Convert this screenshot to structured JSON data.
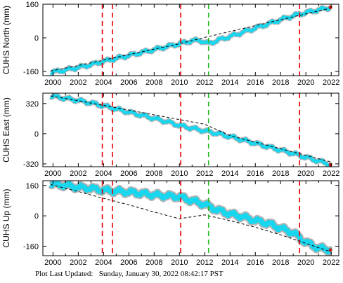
{
  "footer": {
    "label": "Plot Last Updated:",
    "value": "Sunday, January 30, 2022 08:42:17 PST"
  },
  "colors": {
    "data": "#19d6ef",
    "error": "#b4b4b4",
    "model": "#000000",
    "event_red": "#e00000",
    "event_green": "#22bb22",
    "recent": "#d01010"
  },
  "chart_data": [
    {
      "type": "line",
      "ylabel": "CUHS North (mm)",
      "x_ticks": [
        2000,
        2002,
        2004,
        2006,
        2008,
        2010,
        2012,
        2014,
        2016,
        2018,
        2020,
        2022
      ],
      "y_ticks": [
        -160,
        0,
        160
      ],
      "xlim": [
        1999.2,
        2022.6
      ],
      "ylim": [
        -180,
        160
      ],
      "grid": false,
      "events": [
        {
          "year": 2003.9,
          "color": "red"
        },
        {
          "year": 2004.7,
          "color": "red"
        },
        {
          "year": 2010.1,
          "color": "red"
        },
        {
          "year": 2012.3,
          "color": "green"
        },
        {
          "year": 2019.5,
          "color": "red"
        }
      ],
      "series": [
        {
          "x": [
            1999.8,
            2001,
            2002,
            2003,
            2004,
            2005,
            2006,
            2007,
            2008,
            2009,
            2010,
            2011,
            2011.6,
            2012.3,
            2013,
            2014,
            2015,
            2016,
            2017,
            2018,
            2019,
            2020,
            2021,
            2022
          ],
          "y": [
            -165,
            -153,
            -141,
            -128,
            -112,
            -98,
            -84,
            -70,
            -56,
            -42,
            -28,
            -14,
            -12,
            -28,
            -12,
            6,
            26,
            46,
            66,
            86,
            105,
            120,
            133,
            145
          ]
        },
        {
          "x": [
            1999.8,
            2002,
            2004,
            2006,
            2008,
            2010,
            2012,
            2014,
            2016,
            2018,
            2020,
            2022
          ],
          "y": [
            -158,
            -132,
            -106,
            -80,
            -54,
            -28,
            2,
            30,
            58,
            86,
            114,
            142
          ]
        }
      ]
    },
    {
      "type": "line",
      "ylabel": "CUHS East (mm)",
      "x_ticks": [
        2000,
        2002,
        2004,
        2006,
        2008,
        2010,
        2012,
        2014,
        2016,
        2018,
        2020,
        2022
      ],
      "y_ticks": [
        -320,
        0,
        320
      ],
      "xlim": [
        1999.2,
        2022.6
      ],
      "ylim": [
        -350,
        430
      ],
      "grid": false,
      "events": [
        {
          "year": 2003.9,
          "color": "red"
        },
        {
          "year": 2004.7,
          "color": "red"
        },
        {
          "year": 2010.1,
          "color": "red"
        },
        {
          "year": 2012.3,
          "color": "green"
        },
        {
          "year": 2019.5,
          "color": "red"
        }
      ],
      "series": [
        {
          "x": [
            1999.8,
            2001,
            2002,
            2003,
            2004,
            2005,
            2006,
            2007,
            2008,
            2009,
            2010,
            2011,
            2012,
            2013,
            2014,
            2015,
            2016,
            2017,
            2018,
            2019,
            2020,
            2021,
            2022
          ],
          "y": [
            400,
            375,
            352,
            326,
            296,
            262,
            228,
            196,
            162,
            128,
            88,
            58,
            30,
            2,
            -30,
            -66,
            -102,
            -138,
            -174,
            -210,
            -250,
            -290,
            -330
          ]
        },
        {
          "x": [
            1999.8,
            2002,
            2004,
            2006,
            2008,
            2010,
            2012,
            2014,
            2016,
            2018,
            2020,
            2022
          ],
          "y": [
            400,
            350,
            300,
            250,
            200,
            150,
            100,
            -20,
            -90,
            -160,
            -230,
            -300
          ]
        }
      ]
    },
    {
      "type": "line",
      "ylabel": "CUHS Up (mm)",
      "x_ticks": [
        2000,
        2002,
        2004,
        2006,
        2008,
        2010,
        2012,
        2014,
        2016,
        2018,
        2020,
        2022
      ],
      "y_ticks": [
        -160,
        0,
        160
      ],
      "xlim": [
        1999.2,
        2022.6
      ],
      "ylim": [
        -210,
        185
      ],
      "grid": false,
      "events": [
        {
          "year": 2003.9,
          "color": "red"
        },
        {
          "year": 2004.7,
          "color": "red"
        },
        {
          "year": 2010.1,
          "color": "red"
        },
        {
          "year": 2012.3,
          "color": "green"
        },
        {
          "year": 2019.5,
          "color": "red"
        }
      ],
      "series": [
        {
          "x": [
            1999.8,
            2001,
            2002,
            2003,
            2004,
            2005,
            2006,
            2007,
            2008,
            2009,
            2010,
            2011,
            2012,
            2013,
            2014,
            2015,
            2016,
            2017,
            2018,
            2019,
            2020,
            2021,
            2022
          ],
          "y": [
            170,
            160,
            150,
            145,
            135,
            130,
            125,
            118,
            110,
            105,
            100,
            80,
            60,
            30,
            10,
            -5,
            -25,
            -40,
            -65,
            -90,
            -140,
            -170,
            -180
          ]
        },
        {
          "x": [
            1999.8,
            2002,
            2004,
            2006,
            2008,
            2010,
            2012,
            2014,
            2016,
            2018,
            2020,
            2022
          ],
          "y": [
            165,
            128,
            92,
            58,
            20,
            -15,
            5,
            -25,
            -60,
            -100,
            -145,
            -190
          ]
        }
      ]
    }
  ]
}
